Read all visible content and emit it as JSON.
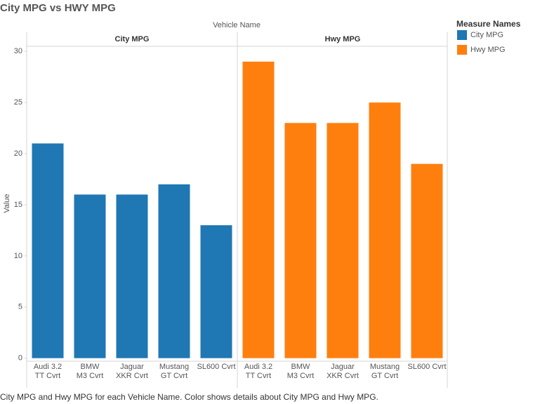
{
  "chart_data": {
    "type": "bar",
    "title": "City MPG vs HWY MPG",
    "column_header": "Vehicle Name",
    "y_label": "Value",
    "legend_title": "Measure Names",
    "categories": [
      "Audi 3.2 TT Cvrt",
      "BMW M3 Cvrt",
      "Jaguar XKR Cvrt",
      "Mustang GT Cvrt",
      "SL600 Cvrt"
    ],
    "series": [
      {
        "name": "City MPG",
        "color": "#1f77b4",
        "values": [
          21,
          16,
          16,
          17,
          13
        ]
      },
      {
        "name": "Hwy MPG",
        "color": "#ff7f0e",
        "values": [
          29,
          23,
          23,
          25,
          19
        ]
      }
    ],
    "ylim": [
      -0.3,
      30.5
    ],
    "yticks": [
      0,
      5,
      10,
      15,
      20,
      25,
      30
    ],
    "grid": false,
    "caption": "City MPG and Hwy MPG for each Vehicle Name.  Color shows details about City MPG and Hwy MPG."
  }
}
